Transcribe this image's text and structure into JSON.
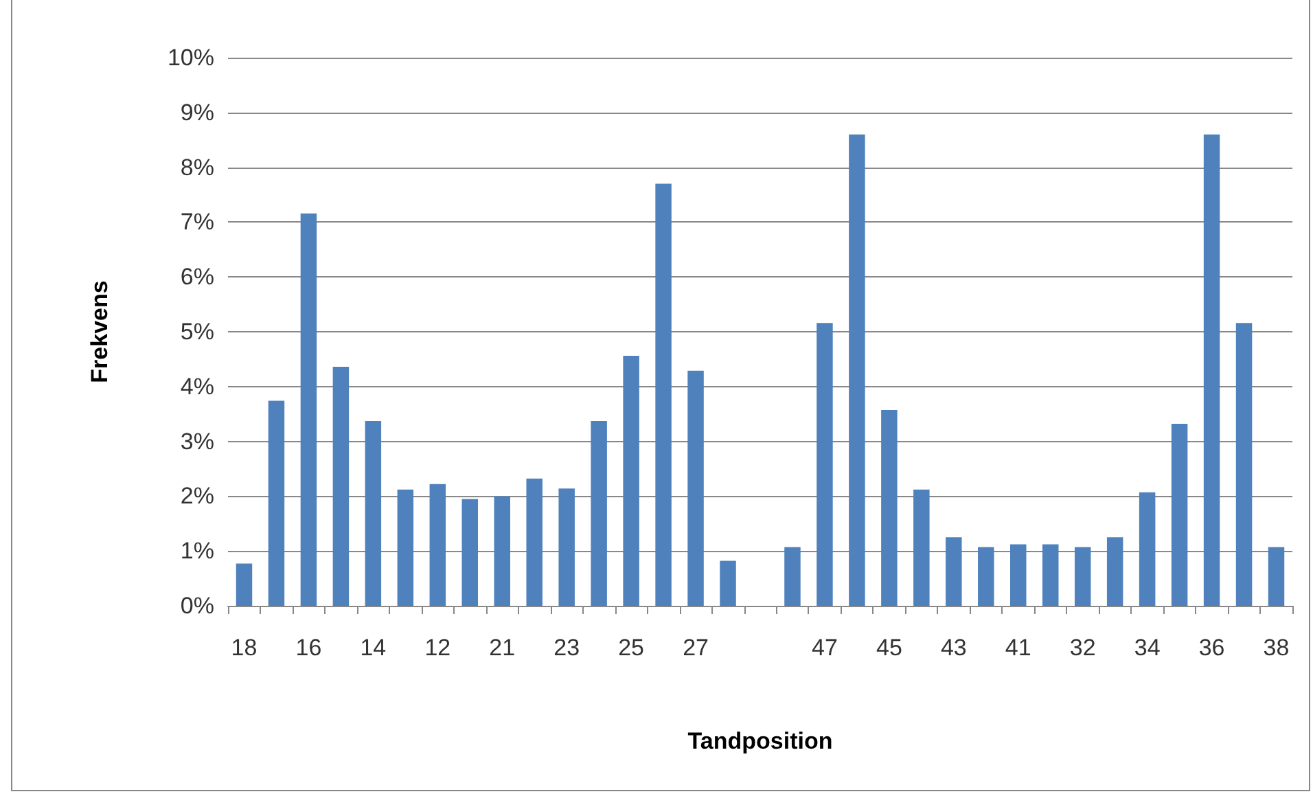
{
  "chart_data": {
    "type": "bar",
    "xlabel": "Tandposition",
    "ylabel": "Frekvens",
    "categories": [
      "18",
      null,
      "16",
      null,
      "14",
      null,
      "12",
      null,
      "21",
      null,
      "23",
      null,
      "25",
      null,
      "27",
      null,
      null,
      null,
      "47",
      null,
      "45",
      null,
      "43",
      null,
      "41",
      null,
      "32",
      null,
      "34",
      null,
      "36",
      null,
      "38"
    ],
    "values": [
      0.77,
      3.74,
      7.16,
      4.36,
      3.37,
      2.12,
      2.22,
      1.95,
      2.0,
      2.32,
      2.14,
      3.37,
      4.56,
      7.7,
      4.29,
      0.82,
      null,
      1.07,
      5.16,
      8.6,
      3.57,
      2.12,
      1.25,
      1.07,
      1.12,
      1.12,
      1.07,
      1.25,
      2.07,
      3.32,
      8.6,
      5.16,
      1.07
    ],
    "color": "#4f81bd",
    "ylim": [
      0,
      10
    ],
    "yticks": [
      {
        "value": 0,
        "label": "0%"
      },
      {
        "value": 1,
        "label": "1%"
      },
      {
        "value": 2,
        "label": "2%"
      },
      {
        "value": 3,
        "label": "3%"
      },
      {
        "value": 4,
        "label": "4%"
      },
      {
        "value": 5,
        "label": "5%"
      },
      {
        "value": 6,
        "label": "6%"
      },
      {
        "value": 7,
        "label": "7%"
      },
      {
        "value": 8,
        "label": "8%"
      },
      {
        "value": 9,
        "label": "9%"
      },
      {
        "value": 10,
        "label": "10%"
      }
    ],
    "grid": "y"
  }
}
